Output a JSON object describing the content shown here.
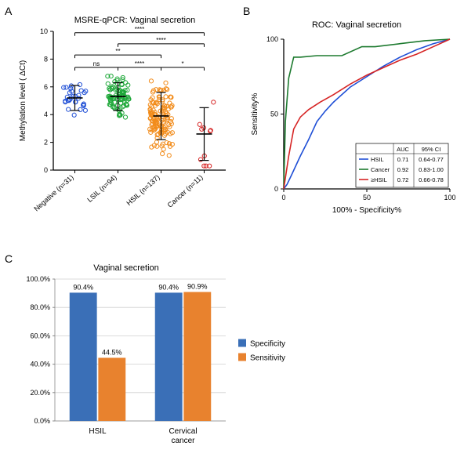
{
  "panelA": {
    "label": "A",
    "title": "MSRE-qPCR: Vaginal secretion",
    "yaxis_label": "Methylation level  ( ΔCt)",
    "ylim": [
      0,
      10
    ],
    "ytick_step": 2,
    "axis_color": "#000000",
    "tick_fontsize": 9,
    "label_fontsize": 10,
    "groups": [
      {
        "name": "Negative",
        "n": 31,
        "color": "#1f4fd6",
        "mean": 5.2,
        "sd": 0.9
      },
      {
        "name": "LSIL",
        "n": 94,
        "color": "#1fa83a",
        "mean": 5.3,
        "sd": 1.0
      },
      {
        "name": "HSIL",
        "n": 137,
        "color": "#f28c1b",
        "mean": 3.9,
        "sd": 1.7
      },
      {
        "name": "Cancer",
        "n": 11,
        "color": "#d62424",
        "mean": 2.6,
        "sd": 1.9
      }
    ],
    "comparisons": [
      {
        "from": 0,
        "to": 1,
        "label": "ns",
        "y": 7.4
      },
      {
        "from": 1,
        "to": 2,
        "label": "****",
        "y": 7.4
      },
      {
        "from": 2,
        "to": 3,
        "label": "*",
        "y": 7.4
      },
      {
        "from": 0,
        "to": 2,
        "label": "**",
        "y": 8.3
      },
      {
        "from": 1,
        "to": 3,
        "label": "****",
        "y": 9.1
      },
      {
        "from": 0,
        "to": 3,
        "label": "****",
        "y": 9.9
      }
    ]
  },
  "panelB": {
    "label": "B",
    "title": "ROC: Vaginal secretion",
    "xaxis_label": "100% - Specificity%",
    "yaxis_label": "Sensitivity%",
    "xlim": [
      0,
      100
    ],
    "ylim": [
      0,
      100
    ],
    "tick_step": 50,
    "axis_color": "#000000",
    "curves": [
      {
        "name": "HSIL",
        "color": "#1f4fd6",
        "auc": "0.71",
        "ci": "0.64-0.77",
        "pts": [
          [
            0,
            0
          ],
          [
            2,
            3
          ],
          [
            5,
            10
          ],
          [
            10,
            22
          ],
          [
            15,
            33
          ],
          [
            20,
            45
          ],
          [
            25,
            52
          ],
          [
            30,
            58
          ],
          [
            40,
            68
          ],
          [
            50,
            75
          ],
          [
            60,
            82
          ],
          [
            70,
            88
          ],
          [
            80,
            93
          ],
          [
            90,
            97
          ],
          [
            100,
            100
          ]
        ]
      },
      {
        "name": "Cancer",
        "color": "#1d7a2f",
        "auc": "0.92",
        "ci": "0.83-1.00",
        "pts": [
          [
            0,
            0
          ],
          [
            1,
            45
          ],
          [
            3,
            74
          ],
          [
            6,
            88
          ],
          [
            10,
            88
          ],
          [
            20,
            89
          ],
          [
            35,
            89
          ],
          [
            47,
            95
          ],
          [
            55,
            95
          ],
          [
            70,
            97
          ],
          [
            85,
            99
          ],
          [
            100,
            100
          ]
        ]
      },
      {
        "name": "≥HSIL",
        "color": "#d62424",
        "auc": "0.72",
        "ci": "0.66-0.78",
        "pts": [
          [
            0,
            0
          ],
          [
            3,
            22
          ],
          [
            6,
            40
          ],
          [
            10,
            48
          ],
          [
            15,
            53
          ],
          [
            22,
            58
          ],
          [
            30,
            63
          ],
          [
            40,
            70
          ],
          [
            50,
            76
          ],
          [
            60,
            81
          ],
          [
            70,
            86
          ],
          [
            80,
            90
          ],
          [
            90,
            95
          ],
          [
            100,
            100
          ]
        ]
      }
    ],
    "legend_header": [
      "",
      "AUC",
      "95% CI"
    ]
  },
  "panelC": {
    "label": "C",
    "title": "Vaginal secretion",
    "yaxis_label_suffix": "%",
    "ylim": [
      0,
      100
    ],
    "ytick_step": 20,
    "axis_color": "#000000",
    "grid_color": "#cfcfcf",
    "categories": [
      "HSIL",
      "Cervical cancer"
    ],
    "series": [
      {
        "name": "Specificity",
        "color": "#3a6fb7",
        "values": [
          90.4,
          90.4
        ]
      },
      {
        "name": "Sensitivity",
        "color": "#e8822e",
        "values": [
          44.5,
          90.9
        ]
      }
    ],
    "bar_labels": [
      [
        "90.4%",
        "44.5%"
      ],
      [
        "90.4%",
        "90.9%"
      ]
    ],
    "bar_width": 0.32,
    "group_gap": 0.6
  }
}
